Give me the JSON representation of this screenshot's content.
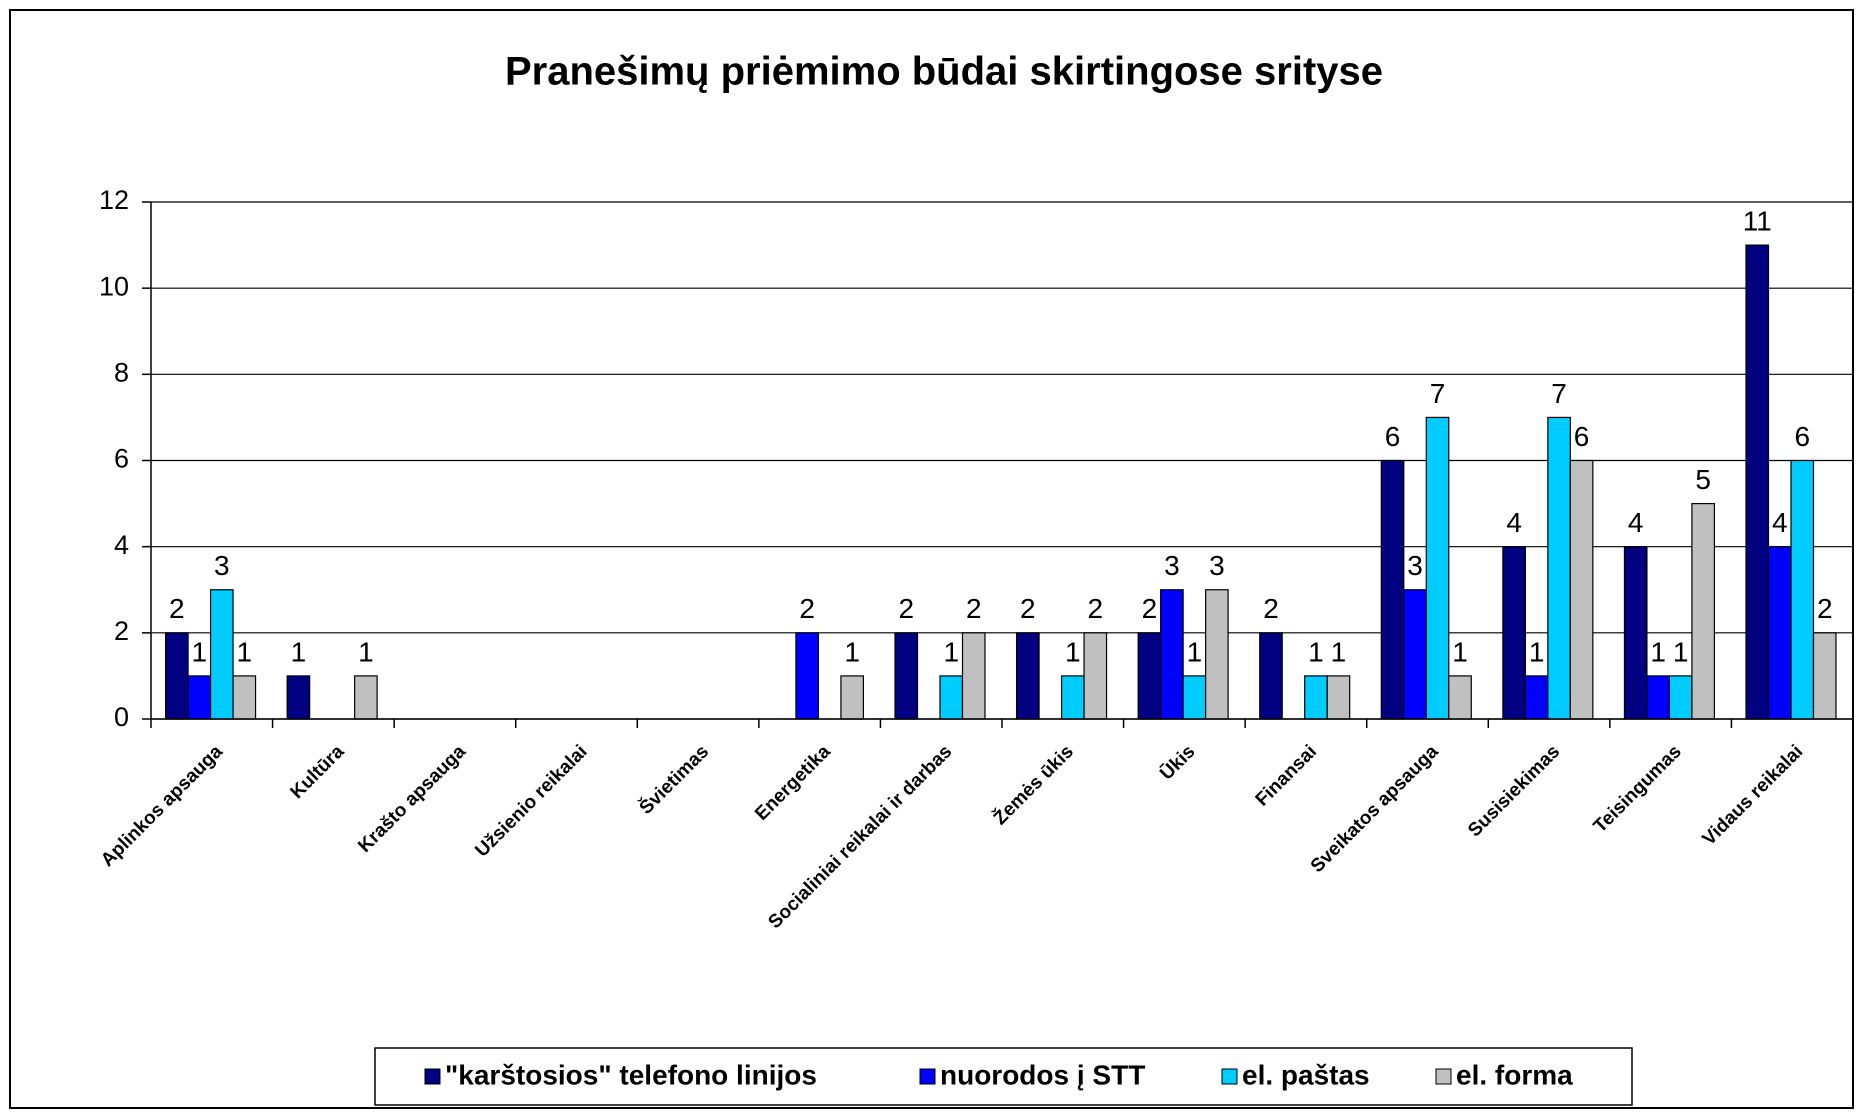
{
  "chart_data": {
    "type": "bar",
    "title": "Pranešimų priėmimo būdai skirtingose srityse",
    "categories": [
      "Aplinkos apsauga",
      "Kultūra",
      "Krašto apsauga",
      "Užsienio reikalai",
      "Švietimas",
      "Energetika",
      "Socialiniai reikalai ir darbas",
      "Žemės ūkis",
      "Ūkis",
      "Finansai",
      "Sveikatos apsauga",
      "Susisiekimas",
      "Teisingumas",
      "Vidaus reikalai"
    ],
    "series": [
      {
        "name": "\"karštosios\" telefono linijos",
        "color": "#000080",
        "values": [
          2,
          1,
          0,
          0,
          0,
          0,
          2,
          2,
          2,
          2,
          6,
          4,
          4,
          11
        ]
      },
      {
        "name": "nuorodos į STT",
        "color": "#0000ff",
        "values": [
          1,
          0,
          0,
          0,
          0,
          2,
          0,
          0,
          3,
          0,
          3,
          1,
          1,
          4
        ]
      },
      {
        "name": "el. paštas",
        "color": "#00ccff",
        "values": [
          3,
          0,
          0,
          0,
          0,
          0,
          1,
          1,
          1,
          1,
          7,
          7,
          1,
          6
        ]
      },
      {
        "name": "el. forma",
        "color": "#c0c0c0",
        "values": [
          1,
          1,
          0,
          0,
          0,
          1,
          2,
          2,
          3,
          1,
          1,
          6,
          5,
          2
        ]
      }
    ],
    "ylim": [
      0,
      12
    ],
    "yticks": [
      0,
      2,
      4,
      6,
      8,
      10,
      12
    ],
    "grid": true,
    "legend": "bottom"
  }
}
